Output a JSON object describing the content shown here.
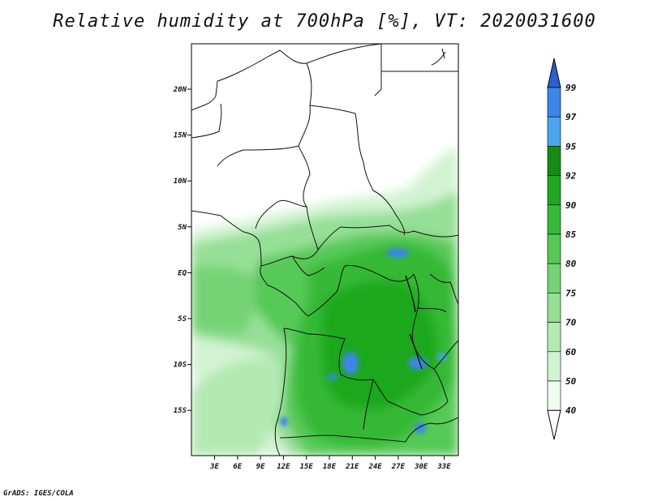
{
  "title": "Relative humidity at 700hPa [%], VT: 2020031600",
  "credit": "GrADS: IGES/COLA",
  "map": {
    "lat_labels": [
      "20N",
      "15N",
      "10N",
      "5N",
      "EQ",
      "5S",
      "10S",
      "15S"
    ],
    "lon_labels": [
      "3E",
      "6E",
      "9E",
      "12E",
      "15E",
      "18E",
      "21E",
      "24E",
      "27E",
      "30E",
      "33E"
    ]
  },
  "colorbar": {
    "levels": [
      "99",
      "97",
      "95",
      "92",
      "90",
      "85",
      "80",
      "75",
      "70",
      "60",
      "50",
      "40"
    ],
    "colors": [
      "#2c5fd0",
      "#3c86e8",
      "#4aa4ee",
      "#148c14",
      "#1fa81f",
      "#36b936",
      "#56c956",
      "#74d374",
      "#96df96",
      "#b4e9b4",
      "#d2f3d2",
      "#eefbee",
      "#ffffff"
    ]
  }
}
